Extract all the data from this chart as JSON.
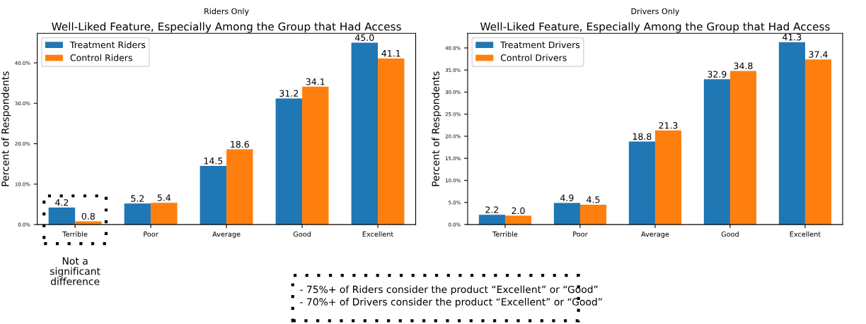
{
  "chart_data": [
    {
      "type": "bar",
      "title": "Riders Only",
      "subtitle": "Well-Liked Feature, Especially Among the Group that Had Access",
      "ylabel": "Percent of Respondents",
      "categories": [
        "Terrible",
        "Poor",
        "Average",
        "Good",
        "Excellent"
      ],
      "series": [
        {
          "name": "Treatment Riders",
          "color": "#1f77b4",
          "values": [
            4.2,
            5.2,
            14.5,
            31.2,
            45.0
          ],
          "value_labels": [
            "4.2",
            "5.2",
            "14.5",
            "31.2",
            "45.0"
          ]
        },
        {
          "name": "Control Riders",
          "color": "#ff7f0e",
          "values": [
            0.8,
            5.4,
            18.6,
            34.1,
            41.1
          ],
          "value_labels": [
            "0.8",
            "5.4",
            "18.6",
            "34.1",
            "41.1"
          ]
        }
      ],
      "ylim": [
        0,
        47.3
      ],
      "yticks": [
        {
          "value": 0,
          "label": "0.0%"
        },
        {
          "value": 10,
          "label": "10.0%"
        },
        {
          "value": 20,
          "label": "20.0%"
        },
        {
          "value": 30,
          "label": "30.0%"
        },
        {
          "value": 40,
          "label": "40.0%"
        }
      ],
      "legend": "top left",
      "grid": false,
      "annotations": [
        "Not a\nsignificant\ndifference",
        "- 75%+ of Riders consider the product “Excellent” or “Good”\n- 70%+ of Drivers consider the product “Excellent” or “Good”"
      ]
    },
    {
      "type": "bar",
      "title": "Drivers Only",
      "subtitle": "Well-Liked Feature, Especially Among the Group that Had Access",
      "ylabel": "Percent of Respondents",
      "categories": [
        "Terrible",
        "Poor",
        "Average",
        "Good",
        "Excellent"
      ],
      "series": [
        {
          "name": "Treatment Drivers",
          "color": "#1f77b4",
          "values": [
            2.2,
            4.9,
            18.8,
            32.9,
            41.3
          ],
          "value_labels": [
            "2.2",
            "4.9",
            "18.8",
            "32.9",
            "41.3"
          ]
        },
        {
          "name": "Control Drivers",
          "color": "#ff7f0e",
          "values": [
            2.0,
            4.5,
            21.3,
            34.8,
            37.4
          ],
          "value_labels": [
            "2.0",
            "4.5",
            "21.3",
            "34.8",
            "37.4"
          ]
        }
      ],
      "ylim": [
        0,
        43.3
      ],
      "yticks": [
        {
          "value": 0,
          "label": "0.0%"
        },
        {
          "value": 5,
          "label": "5.0%"
        },
        {
          "value": 10,
          "label": "10.0%"
        },
        {
          "value": 15,
          "label": "15.0%"
        },
        {
          "value": 20,
          "label": "20.0%"
        },
        {
          "value": 25,
          "label": "25.0%"
        },
        {
          "value": 30,
          "label": "30.0%"
        },
        {
          "value": 35,
          "label": "35.0%"
        },
        {
          "value": 40,
          "label": "40.0%"
        }
      ],
      "legend": "top left",
      "grid": false
    }
  ]
}
